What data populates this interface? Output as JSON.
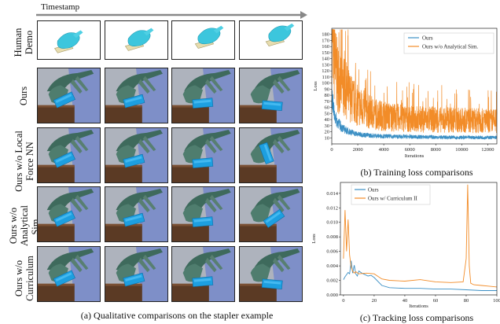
{
  "figure": {
    "timestamp_label": "Timestamp",
    "rows": [
      "Human Demo",
      "Ours",
      "Ours w/o Local Force NN",
      "Ours w/o Analytical Sim.",
      "Ours w/o Curriculum"
    ],
    "caption_a": "(a) Qualitative comparisons on the stapler example",
    "caption_b": "(b) Training loss comparisons",
    "caption_c": "(c) Tracking loss comparisons"
  },
  "chart_data": [
    {
      "type": "line",
      "title": "",
      "xlabel": "Iterations",
      "ylabel": "Loss",
      "xlim": [
        0,
        12700
      ],
      "ylim": [
        0,
        190
      ],
      "x_ticks": [
        0,
        2000,
        4000,
        6000,
        8000,
        10000,
        12000
      ],
      "y_ticks": [
        10,
        20,
        30,
        40,
        50,
        60,
        70,
        80,
        90,
        100,
        110,
        120,
        130,
        140,
        150,
        160,
        170,
        180
      ],
      "legend": "top-right",
      "series": [
        {
          "name": "Ours",
          "color": "#3b8fc4",
          "x": [
            0,
            200,
            400,
            600,
            800,
            1000,
            1500,
            2000,
            3000,
            4000,
            5000,
            6000,
            8000,
            10000,
            12000,
            12700
          ],
          "values": [
            75,
            45,
            35,
            30,
            25,
            22,
            18,
            15,
            13,
            12,
            11.5,
            11,
            10.5,
            10,
            10,
            10
          ]
        },
        {
          "name": "Ours w/o Analytical Sim.",
          "color": "#f28c28",
          "x": [
            0,
            100,
            200,
            400,
            600,
            1000,
            1500,
            2000,
            3000,
            4000,
            5000,
            6000,
            8000,
            10000,
            12000,
            12700
          ],
          "values": [
            185,
            160,
            120,
            100,
            90,
            80,
            65,
            55,
            45,
            40,
            38,
            36,
            35,
            34,
            33,
            33
          ]
        }
      ]
    },
    {
      "type": "line",
      "title": "",
      "xlabel": "Iterations",
      "ylabel": "Loss",
      "xlim": [
        -2,
        100
      ],
      "ylim": [
        0,
        0.0155
      ],
      "x_ticks": [
        0,
        20,
        40,
        60,
        80,
        100
      ],
      "y_ticks": [
        "0.000",
        "0.002",
        "0.004",
        "0.006",
        "0.008",
        "0.010",
        "0.012",
        "0.014"
      ],
      "legend": "top-left",
      "series": [
        {
          "name": "Ours",
          "color": "#3b8fc4",
          "x": [
            0,
            1,
            2,
            3,
            4,
            5,
            6,
            7,
            8,
            9,
            10,
            12,
            14,
            16,
            18,
            20,
            25,
            30,
            40,
            50,
            60,
            70,
            80,
            90,
            100
          ],
          "values": [
            0.0021,
            0.0025,
            0.0028,
            0.0031,
            0.0029,
            0.0047,
            0.003,
            0.0041,
            0.0029,
            0.0026,
            0.0033,
            0.003,
            0.0028,
            0.0026,
            0.0027,
            0.0024,
            0.0013,
            0.001,
            0.0009,
            0.0009,
            0.0008,
            0.0008,
            0.0007,
            0.0006,
            0.0006
          ]
        },
        {
          "name": "Ours w/ Curriculum II",
          "color": "#f28c28",
          "x": [
            0,
            1,
            2,
            3,
            4,
            5,
            6,
            7,
            8,
            10,
            15,
            20,
            25,
            30,
            40,
            50,
            60,
            70,
            78,
            80,
            81,
            82,
            83,
            85,
            90,
            95,
            100
          ],
          "values": [
            0.005,
            0.0117,
            0.006,
            0.0104,
            0.0055,
            0.0038,
            0.0033,
            0.003,
            0.0032,
            0.0029,
            0.003,
            0.0029,
            0.0022,
            0.002,
            0.0019,
            0.0021,
            0.0018,
            0.0017,
            0.0018,
            0.005,
            0.0152,
            0.004,
            0.0016,
            0.0014,
            0.0013,
            0.0012,
            0.0011
          ]
        }
      ]
    }
  ]
}
